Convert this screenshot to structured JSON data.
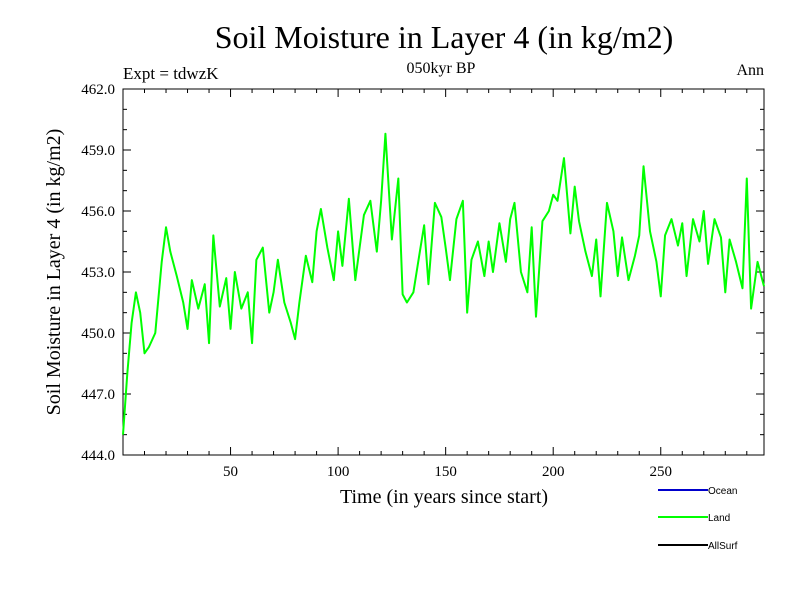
{
  "chart_data": {
    "type": "line",
    "title": "Soil Moisture in Layer 4 (in kg/m2)",
    "subtitle": "050kyr BP",
    "top_left_label": "Expt = tdwzK",
    "top_right_label": "Ann",
    "xlabel": "Time (in years since start)",
    "ylabel": "Soil Moisture in Layer 4 (in kg/m2)",
    "xlim": [
      0,
      298
    ],
    "ylim": [
      444.0,
      462.0
    ],
    "x_ticks": [
      50,
      100,
      150,
      200,
      250
    ],
    "x_tick_labels": [
      "50",
      "100",
      "150",
      "200",
      "250"
    ],
    "y_ticks": [
      444,
      447,
      450,
      453,
      456,
      459,
      462
    ],
    "y_tick_labels": [
      "444.0",
      "447.0",
      "450.0",
      "453.0",
      "456.0",
      "459.0",
      "462.0"
    ],
    "grid": false,
    "legend_position": "bottom-right",
    "legend": [
      {
        "name": "Ocean",
        "color": "#0000cc"
      },
      {
        "name": "Land",
        "color": "#00ff00"
      },
      {
        "name": "AllSurf",
        "color": "#000000"
      }
    ],
    "series": [
      {
        "name": "Land",
        "color": "#00ff00",
        "x": [
          0,
          2,
          4,
          6,
          8,
          10,
          12,
          15,
          18,
          20,
          22,
          25,
          28,
          30,
          32,
          35,
          38,
          40,
          42,
          45,
          48,
          50,
          52,
          55,
          58,
          60,
          62,
          65,
          68,
          70,
          72,
          75,
          78,
          80,
          82,
          85,
          88,
          90,
          92,
          95,
          98,
          100,
          102,
          105,
          108,
          110,
          112,
          115,
          118,
          120,
          122,
          125,
          128,
          130,
          132,
          135,
          138,
          140,
          142,
          145,
          148,
          150,
          152,
          155,
          158,
          160,
          162,
          165,
          168,
          170,
          172,
          175,
          178,
          180,
          182,
          185,
          188,
          190,
          192,
          195,
          198,
          200,
          202,
          205,
          208,
          210,
          212,
          215,
          218,
          220,
          222,
          225,
          228,
          230,
          232,
          235,
          238,
          240,
          242,
          245,
          248,
          250,
          252,
          255,
          258,
          260,
          262,
          265,
          268,
          270,
          272,
          275,
          278,
          280,
          282,
          285,
          288,
          290,
          292,
          295,
          298
        ],
        "y": [
          445.0,
          448.0,
          450.5,
          452.0,
          451.0,
          449.0,
          449.3,
          450.0,
          453.5,
          455.2,
          454.0,
          452.8,
          451.5,
          450.2,
          452.6,
          451.2,
          452.4,
          449.5,
          454.8,
          451.3,
          452.7,
          450.2,
          453.0,
          451.2,
          452.0,
          449.5,
          453.6,
          454.2,
          451.0,
          452.0,
          453.6,
          451.5,
          450.5,
          449.7,
          451.5,
          453.8,
          452.5,
          455.0,
          456.1,
          454.2,
          452.6,
          455.0,
          453.3,
          456.6,
          452.6,
          454.2,
          455.8,
          456.5,
          454.0,
          456.5,
          459.8,
          454.6,
          457.6,
          451.9,
          451.5,
          452.0,
          454.0,
          455.3,
          452.4,
          456.4,
          455.7,
          454.2,
          452.6,
          455.6,
          456.5,
          451.0,
          453.6,
          454.5,
          452.8,
          454.5,
          453.0,
          455.4,
          453.5,
          455.6,
          456.4,
          453.0,
          452.0,
          455.2,
          450.8,
          455.5,
          456.0,
          456.8,
          456.5,
          458.6,
          454.9,
          457.2,
          455.5,
          454.0,
          452.8,
          454.6,
          451.8,
          456.4,
          455.0,
          452.8,
          454.7,
          452.6,
          453.8,
          454.8,
          458.2,
          455.0,
          453.5,
          451.8,
          454.8,
          455.6,
          454.3,
          455.4,
          452.8,
          455.6,
          454.5,
          456.0,
          453.4,
          455.6,
          454.7,
          452.0,
          454.6,
          453.5,
          452.2,
          457.6,
          451.2,
          453.5,
          452.3
        ]
      }
    ]
  }
}
